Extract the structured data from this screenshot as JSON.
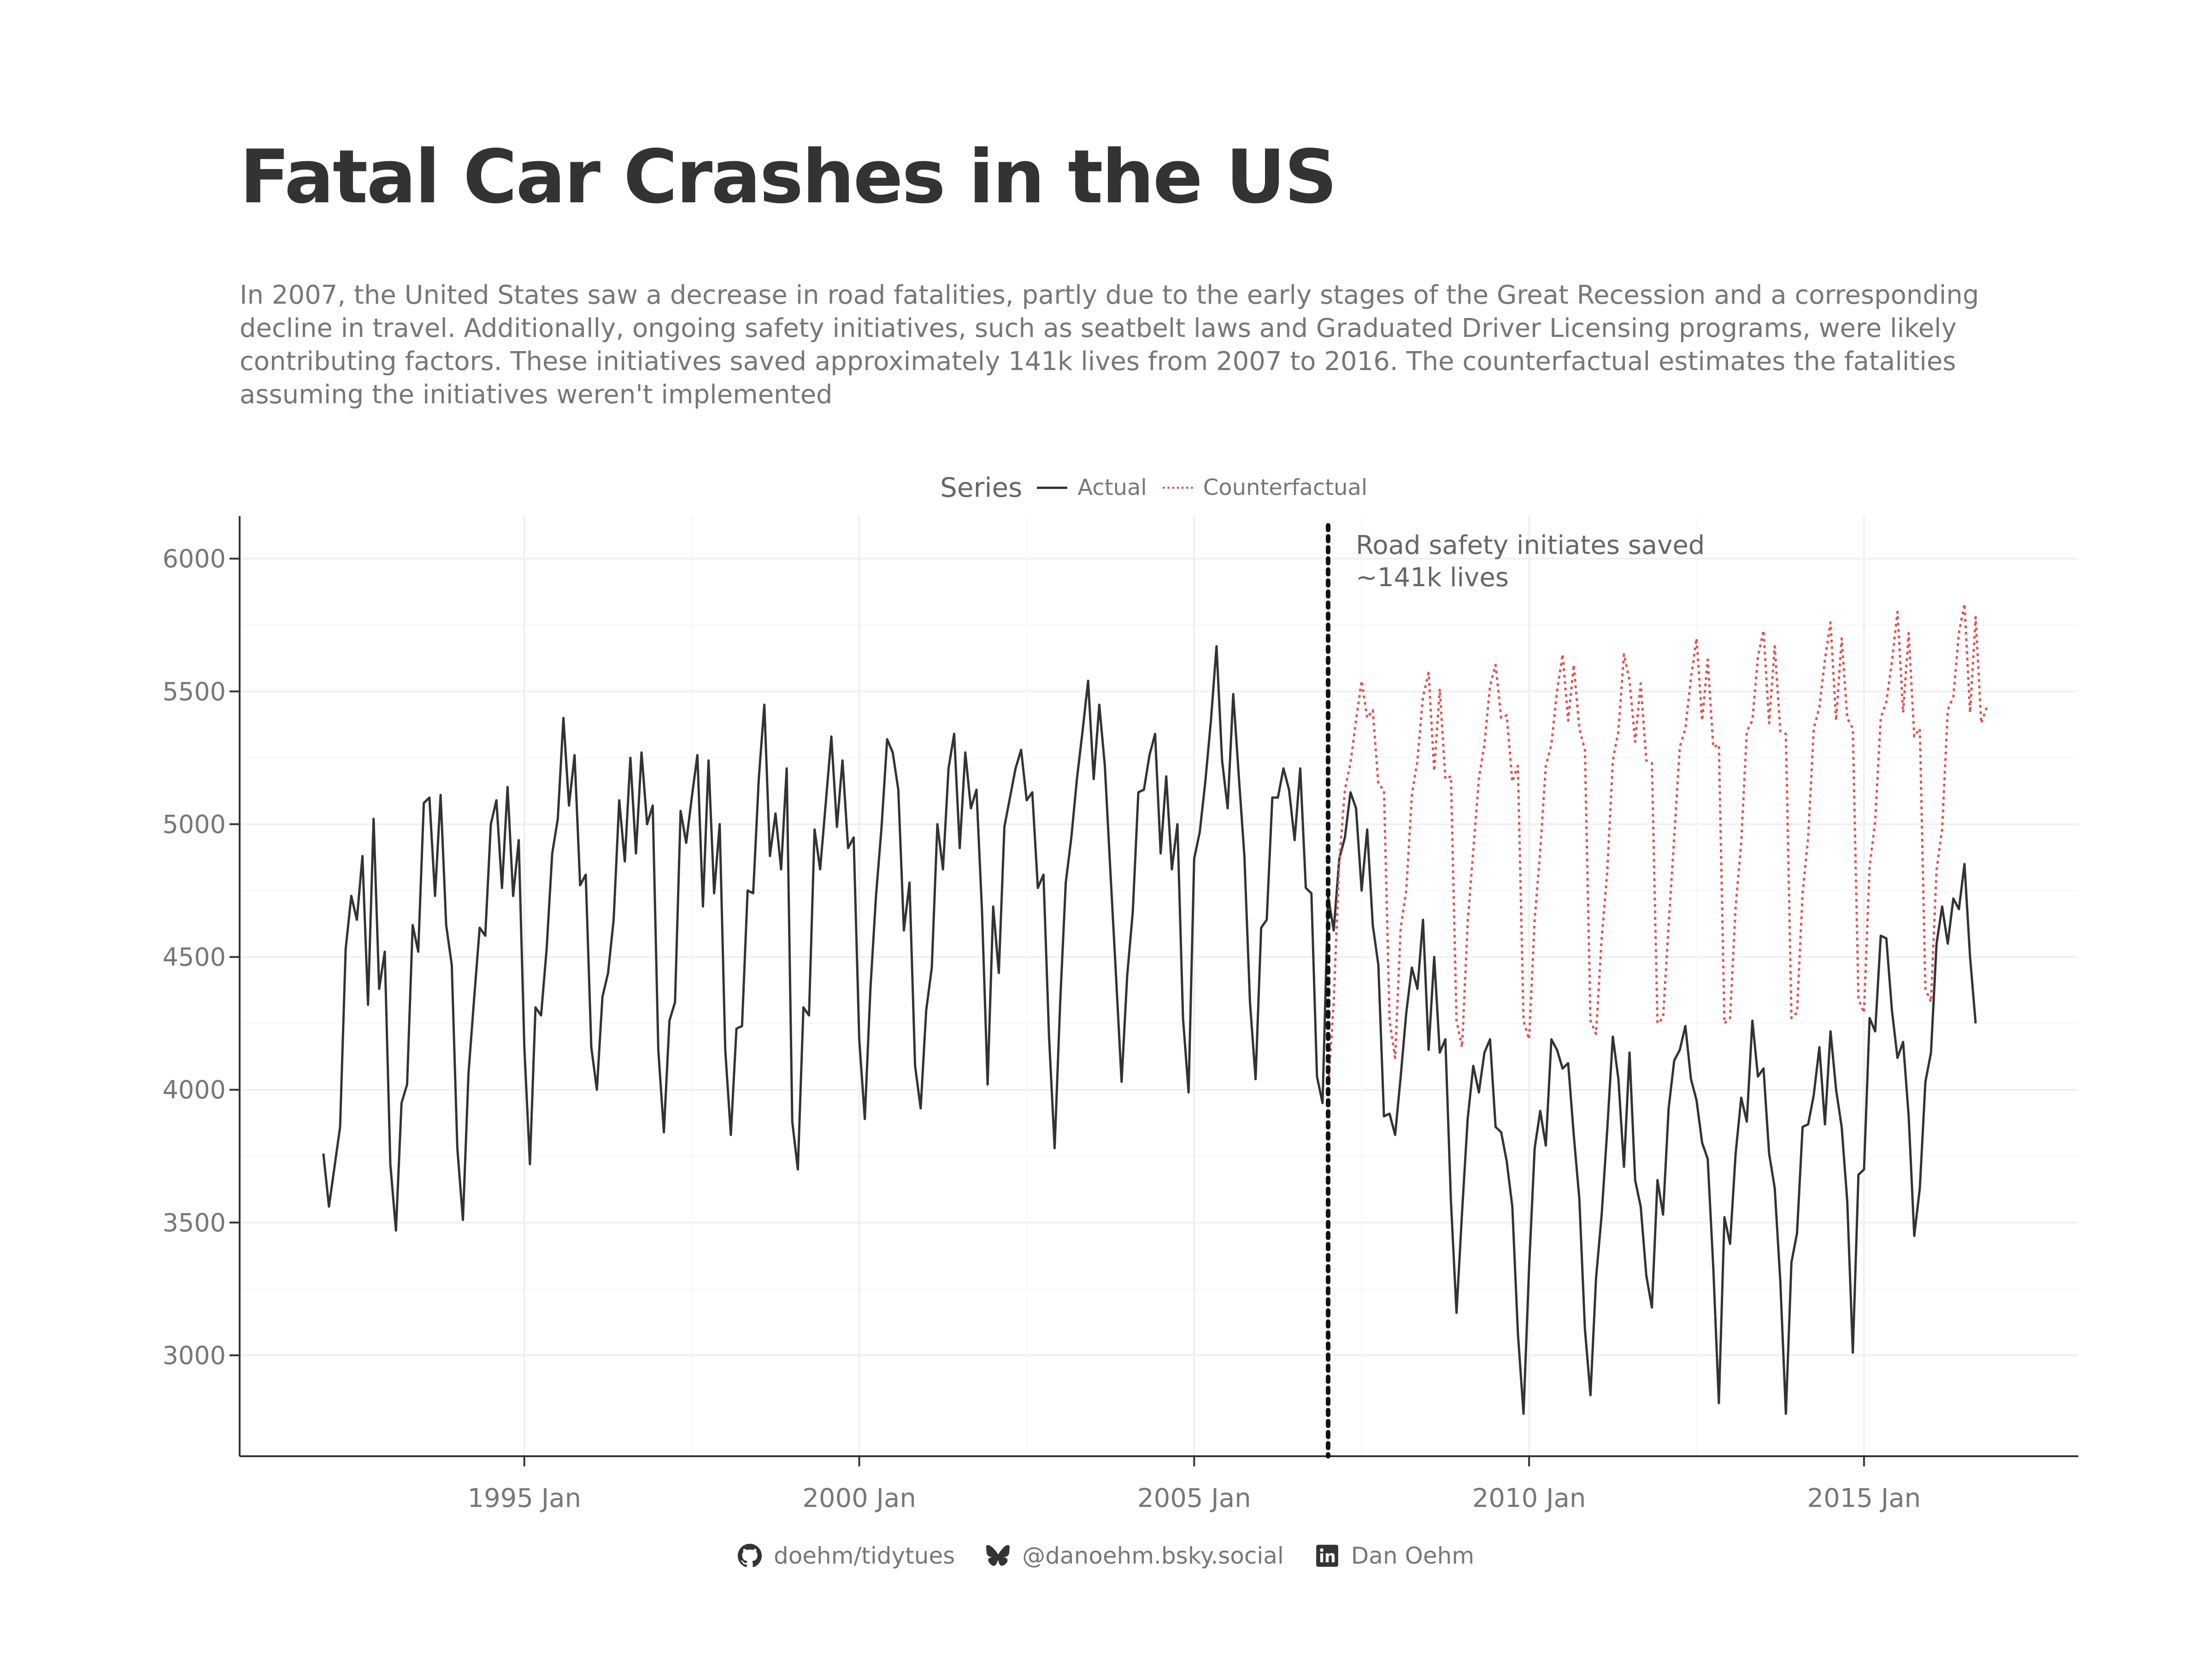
{
  "title": "Fatal Car Crashes in the US",
  "subtitle": "In 2007, the United States saw a decrease in road fatalities, partly due to the early stages of the Great Recession and a corresponding decline in travel. Additionally, ongoing safety initiatives, such as seatbelt laws and Graduated Driver Licensing programs, were likely contributing factors. These initiatives saved approximately 141k lives from 2007 to 2016. The counterfactual estimates the fatalities assuming the initiatives weren't implemented",
  "legend": {
    "title": "Series",
    "actual_label": "Actual",
    "counterfactual_label": "Counterfactual"
  },
  "colors": {
    "actual": "#333333",
    "counterfactual": "#e05252",
    "grid": "#f0f0f0",
    "axis": "#333333",
    "text": "#777777"
  },
  "footer": {
    "github": {
      "icon": "github-icon",
      "text": "doehm/tidytues"
    },
    "bluesky": {
      "icon": "butterfly-icon",
      "text": "@danoehm.bsky.social"
    },
    "linkedin": {
      "icon": "linkedin-icon",
      "text": "Dan Oehm"
    }
  },
  "chart_data": {
    "type": "line",
    "title": "Fatal Car Crashes in the US",
    "xlabel": "",
    "ylabel": "",
    "x_unit": "year (decimal)",
    "xlim": [
      1990.75,
      2018.2
    ],
    "ylim": [
      2620,
      6160
    ],
    "y_ticks": [
      3000,
      3500,
      4000,
      4500,
      5000,
      5500,
      6000
    ],
    "x_ticks": [
      {
        "value": 1995,
        "label": "1995 Jan"
      },
      {
        "value": 2000,
        "label": "2000 Jan"
      },
      {
        "value": 2005,
        "label": "2005 Jan"
      },
      {
        "value": 2010,
        "label": "2010 Jan"
      },
      {
        "value": 2015,
        "label": "2015 Jan"
      }
    ],
    "grid": true,
    "legend_position": "top",
    "annotation": {
      "x": 2007.0,
      "lines": [
        "Road safety initiates saved",
        "~141k lives"
      ],
      "style": "dotted vertical line"
    },
    "series": [
      {
        "name": "Actual",
        "start": 1992.0,
        "step_months": 1,
        "values": [
          3760,
          3560,
          3710,
          3860,
          4530,
          4730,
          4640,
          4880,
          4320,
          5020,
          4380,
          4520,
          3720,
          3470,
          3950,
          4020,
          4620,
          4520,
          5080,
          5100,
          4730,
          5110,
          4620,
          4470,
          3780,
          3510,
          4060,
          4340,
          4610,
          4580,
          5000,
          5090,
          4760,
          5140,
          4730,
          4940,
          4160,
          3720,
          4310,
          4280,
          4530,
          4890,
          5020,
          5400,
          5070,
          5260,
          4770,
          4810,
          4160,
          4000,
          4350,
          4440,
          4640,
          5090,
          4860,
          5250,
          4890,
          5270,
          5000,
          5070,
          4150,
          3840,
          4260,
          4330,
          5050,
          4930,
          5100,
          5260,
          4690,
          5240,
          4740,
          5000,
          4150,
          3830,
          4230,
          4240,
          4750,
          4740,
          5170,
          5450,
          4880,
          5040,
          4830,
          5210,
          3880,
          3700,
          4310,
          4280,
          4980,
          4830,
          5080,
          5330,
          4990,
          5240,
          4910,
          4950,
          4190,
          3890,
          4380,
          4730,
          4990,
          5320,
          5270,
          5130,
          4600,
          4780,
          4090,
          3930,
          4300,
          4460,
          5000,
          4830,
          5210,
          5340,
          4910,
          5270,
          5060,
          5130,
          4670,
          4020,
          4690,
          4440,
          4990,
          5100,
          5210,
          5280,
          5090,
          5120,
          4760,
          4810,
          4200,
          3780,
          4330,
          4780,
          4950,
          5170,
          5350,
          5540,
          5170,
          5450,
          5220,
          4820,
          4430,
          4030,
          4430,
          4670,
          5120,
          5130,
          5260,
          5340,
          4890,
          5180,
          4830,
          5000,
          4270,
          3990,
          4870,
          4970,
          5160,
          5390,
          5670,
          5240,
          5060,
          5490,
          5180,
          4880,
          4330,
          4040,
          4610,
          4640,
          5100,
          5100,
          5210,
          5130,
          4940,
          5210,
          4760,
          4740,
          4050,
          3950,
          4730,
          4600,
          4870,
          4950,
          5120,
          5060,
          4750,
          4980,
          4620,
          4470,
          3900,
          3910,
          3830,
          4050,
          4290,
          4460,
          4380,
          4640,
          4150,
          4500,
          4140,
          4190,
          3580,
          3160,
          3540,
          3890,
          4090,
          3990,
          4140,
          4190,
          3860,
          3840,
          3730,
          3560,
          3080,
          2780,
          3330,
          3780,
          3920,
          3790,
          4190,
          4150,
          4080,
          4100,
          3830,
          3590,
          3100,
          2850,
          3290,
          3530,
          3850,
          4200,
          4040,
          3710,
          4140,
          3660,
          3560,
          3300,
          3180,
          3660,
          3530,
          3930,
          4110,
          4150,
          4240,
          4040,
          3960,
          3800,
          3740,
          3330,
          2820,
          3520,
          3420,
          3760,
          3970,
          3880,
          4260,
          4050,
          4080,
          3760,
          3630,
          3280,
          2780,
          3350,
          3460,
          3860,
          3870,
          3980,
          4160,
          3870,
          4220,
          4000,
          3860,
          3580,
          3010,
          3680,
          3700,
          4270,
          4220,
          4580,
          4570,
          4300,
          4120,
          4180,
          3900,
          3450,
          3630,
          4030,
          4140,
          4550,
          4690,
          4550,
          4720,
          4680,
          4850,
          4500,
          4250
        ]
      },
      {
        "name": "Counterfactual",
        "start": 2007.0,
        "step_months": 1,
        "values": [
          4000,
          4330,
          4860,
          5130,
          5230,
          5390,
          5540,
          5400,
          5430,
          5150,
          5130,
          4260,
          4120,
          4610,
          4750,
          5110,
          5240,
          5480,
          5570,
          5200,
          5510,
          5170,
          5180,
          4260,
          4160,
          4630,
          4900,
          5170,
          5300,
          5520,
          5600,
          5400,
          5410,
          5160,
          5220,
          4260,
          4190,
          4640,
          4900,
          5220,
          5300,
          5500,
          5640,
          5390,
          5600,
          5360,
          5280,
          4260,
          4210,
          4570,
          4820,
          5240,
          5350,
          5640,
          5540,
          5310,
          5530,
          5240,
          5230,
          4250,
          4270,
          4620,
          4950,
          5290,
          5360,
          5550,
          5700,
          5390,
          5620,
          5290,
          5300,
          4250,
          4270,
          4690,
          4930,
          5350,
          5390,
          5630,
          5730,
          5380,
          5670,
          5350,
          5340,
          4270,
          4290,
          4740,
          4950,
          5360,
          5440,
          5620,
          5760,
          5390,
          5700,
          5400,
          5360,
          4340,
          4290,
          4840,
          5010,
          5400,
          5460,
          5610,
          5800,
          5420,
          5720,
          5330,
          5360,
          4380,
          4330,
          4830,
          4980,
          5430,
          5480,
          5720,
          5830,
          5420,
          5780,
          5380,
          5440
        ]
      }
    ]
  }
}
